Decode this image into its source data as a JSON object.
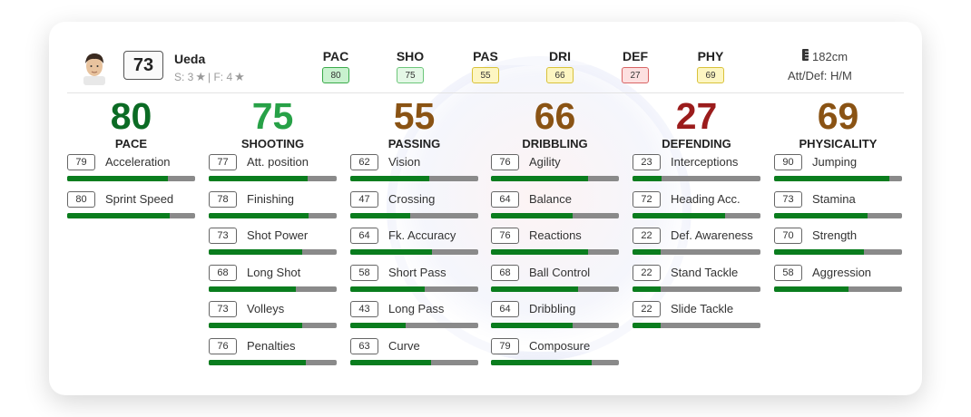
{
  "player": {
    "name": "Ueda",
    "overall": "73",
    "skill_label": "S: 3",
    "foot_label": "| F: 4"
  },
  "header_attrs": [
    {
      "label": "PAC",
      "value": "80",
      "bg": "#c9f2cf",
      "border": "#3aaa4a"
    },
    {
      "label": "SHO",
      "value": "75",
      "bg": "#e4f8e6",
      "border": "#6cc67a"
    },
    {
      "label": "PAS",
      "value": "55",
      "bg": "#fdf6c2",
      "border": "#d9c23a"
    },
    {
      "label": "DRI",
      "value": "66",
      "bg": "#fdf6c2",
      "border": "#d9c23a"
    },
    {
      "label": "DEF",
      "value": "27",
      "bg": "#fde0e0",
      "border": "#d96464"
    },
    {
      "label": "PHY",
      "value": "69",
      "bg": "#fdf6c2",
      "border": "#d9c23a"
    }
  ],
  "height": "182cm",
  "work_rate": "Att/Def: H/M",
  "icons": {
    "height": "ruler-icon",
    "star": "star-icon"
  },
  "columns": [
    {
      "value": "80",
      "category": "PACE",
      "color": "#0b6b24",
      "stats": [
        {
          "value": 79,
          "name": "Acceleration"
        },
        {
          "value": 80,
          "name": "Sprint Speed"
        }
      ]
    },
    {
      "value": "75",
      "category": "SHOOTING",
      "color": "#27a147",
      "stats": [
        {
          "value": 77,
          "name": "Att. position"
        },
        {
          "value": 78,
          "name": "Finishing"
        },
        {
          "value": 73,
          "name": "Shot Power"
        },
        {
          "value": 68,
          "name": "Long Shot"
        },
        {
          "value": 73,
          "name": "Volleys"
        },
        {
          "value": 76,
          "name": "Penalties"
        }
      ]
    },
    {
      "value": "55",
      "category": "PASSING",
      "color": "#8a5314",
      "stats": [
        {
          "value": 62,
          "name": "Vision"
        },
        {
          "value": 47,
          "name": "Crossing"
        },
        {
          "value": 64,
          "name": "Fk. Accuracy"
        },
        {
          "value": 58,
          "name": "Short Pass"
        },
        {
          "value": 43,
          "name": "Long Pass"
        },
        {
          "value": 63,
          "name": "Curve"
        }
      ]
    },
    {
      "value": "66",
      "category": "DRIBBLING",
      "color": "#8a5314",
      "stats": [
        {
          "value": 76,
          "name": "Agility"
        },
        {
          "value": 64,
          "name": "Balance"
        },
        {
          "value": 76,
          "name": "Reactions"
        },
        {
          "value": 68,
          "name": "Ball Control"
        },
        {
          "value": 64,
          "name": "Dribbling"
        },
        {
          "value": 79,
          "name": "Composure"
        }
      ]
    },
    {
      "value": "27",
      "category": "DEFENDING",
      "color": "#9b1c1c",
      "stats": [
        {
          "value": 23,
          "name": "Interceptions"
        },
        {
          "value": 72,
          "name": "Heading Acc."
        },
        {
          "value": 22,
          "name": "Def. Awareness"
        },
        {
          "value": 22,
          "name": "Stand Tackle"
        },
        {
          "value": 22,
          "name": "Slide Tackle"
        }
      ]
    },
    {
      "value": "69",
      "category": "PHYSICALITY",
      "color": "#8a5314",
      "stats": [
        {
          "value": 90,
          "name": "Jumping"
        },
        {
          "value": 73,
          "name": "Stamina"
        },
        {
          "value": 70,
          "name": "Strength"
        },
        {
          "value": 58,
          "name": "Aggression"
        }
      ]
    }
  ]
}
